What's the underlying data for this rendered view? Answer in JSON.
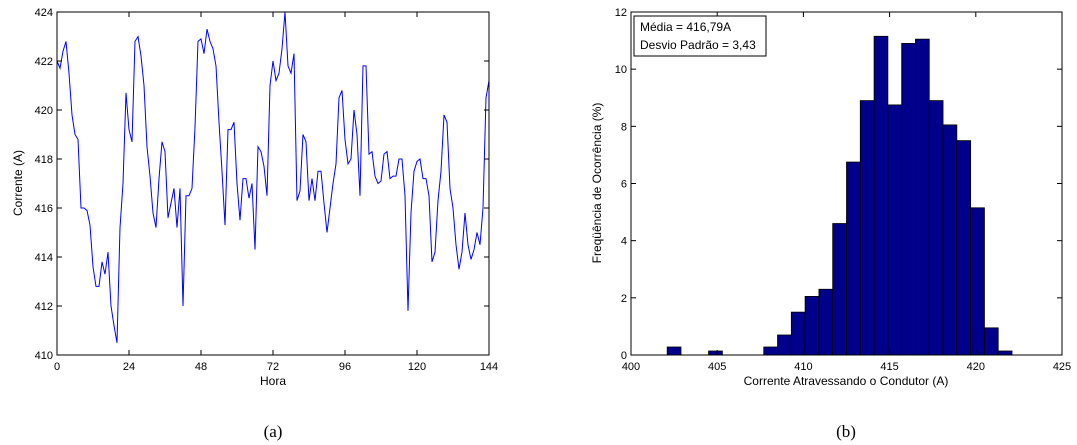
{
  "chart_data": [
    {
      "type": "line",
      "caption": "(a)",
      "xlabel": "Hora",
      "ylabel": "Corrente (A)",
      "xlim": [
        0,
        144
      ],
      "ylim": [
        410,
        424
      ],
      "xticks": [
        0,
        24,
        48,
        72,
        96,
        120,
        144
      ],
      "yticks": [
        410,
        412,
        414,
        416,
        418,
        420,
        422,
        424
      ],
      "grid": false,
      "color": "#0000ff",
      "series": [
        {
          "x": [
            0,
            1,
            2,
            3,
            4,
            5,
            6,
            7,
            8,
            9,
            10,
            11,
            12,
            13,
            14,
            15,
            16,
            17,
            18,
            19,
            20,
            21,
            22,
            23,
            24,
            25,
            26,
            27,
            28,
            29,
            30,
            31,
            32,
            33,
            34,
            35,
            36,
            37,
            38,
            39,
            40,
            41,
            42,
            43,
            44,
            45,
            46,
            47,
            48,
            49,
            50,
            51,
            52,
            53,
            54,
            55,
            56,
            57,
            58,
            59,
            60,
            61,
            62,
            63,
            64,
            65,
            66,
            67,
            68,
            69,
            70,
            71,
            72,
            73,
            74,
            75,
            76,
            77,
            78,
            79,
            80,
            81,
            82,
            83,
            84,
            85,
            86,
            87,
            88,
            89,
            90,
            91,
            92,
            93,
            94,
            95,
            96,
            97,
            98,
            99,
            100,
            101,
            102,
            103,
            104,
            105,
            106,
            107,
            108,
            109,
            110,
            111,
            112,
            113,
            114,
            115,
            116,
            117,
            118,
            119,
            120,
            121,
            122,
            123,
            124,
            125,
            126,
            127,
            128,
            129,
            130,
            131,
            132,
            133,
            134,
            135,
            136,
            137,
            138,
            139,
            140,
            141,
            142,
            143,
            144
          ],
          "values": [
            422.0,
            421.7,
            422.4,
            422.8,
            421.5,
            419.8,
            419.0,
            418.8,
            416.0,
            416.0,
            415.9,
            415.3,
            413.6,
            412.8,
            412.8,
            413.8,
            413.3,
            414.2,
            412.0,
            411.2,
            410.5,
            415.2,
            417.0,
            420.7,
            419.2,
            418.7,
            422.8,
            423.0,
            422.2,
            421.0,
            418.5,
            417.3,
            415.8,
            415.2,
            417.2,
            418.7,
            418.3,
            415.6,
            416.2,
            416.8,
            415.2,
            416.8,
            412.0,
            416.5,
            416.5,
            416.8,
            419.3,
            422.8,
            422.9,
            422.3,
            423.3,
            422.8,
            422.5,
            421.8,
            419.5,
            417.5,
            415.3,
            419.2,
            419.2,
            419.5,
            417.0,
            415.5,
            417.2,
            417.2,
            416.4,
            417.0,
            414.3,
            418.5,
            418.3,
            417.7,
            416.5,
            421.0,
            422.0,
            421.2,
            421.5,
            422.5,
            424.0,
            421.8,
            421.5,
            422.3,
            416.3,
            416.7,
            419.0,
            418.7,
            416.3,
            417.2,
            416.3,
            417.5,
            417.5,
            416.2,
            415.0,
            416.0,
            417.0,
            417.8,
            420.5,
            420.8,
            418.8,
            417.8,
            418.0,
            420.0,
            419.0,
            416.5,
            421.8,
            421.8,
            418.2,
            418.3,
            417.3,
            417.0,
            417.1,
            418.2,
            418.3,
            417.2,
            417.3,
            417.3,
            418.0,
            418.0,
            416.5,
            411.8,
            415.8,
            417.5,
            417.9,
            418.0,
            417.2,
            417.2,
            416.5,
            413.8,
            414.2,
            416.3,
            417.5,
            419.8,
            419.5,
            416.8,
            416.0,
            414.5,
            413.5,
            414.2,
            415.8,
            414.5,
            413.9,
            414.3,
            415.0,
            414.5,
            416.0,
            420.5,
            421.2
          ]
        }
      ]
    },
    {
      "type": "bar",
      "subtype": "histogram",
      "caption": "(b)",
      "xlabel": "Corrente Atravessando o Condutor (A)",
      "ylabel": "Freqüência de Ocorrência (%)",
      "xlim": [
        400,
        425
      ],
      "ylim": [
        0,
        12
      ],
      "xticks": [
        400,
        405,
        410,
        415,
        420,
        425
      ],
      "yticks": [
        0,
        2,
        4,
        6,
        8,
        10,
        12
      ],
      "grid": false,
      "bar_color": "#00008b",
      "bin_start": 401.3,
      "bin_width": 0.8,
      "values": [
        0,
        0.28,
        0,
        0,
        0.14,
        0,
        0,
        0,
        0.28,
        0.7,
        1.5,
        2.05,
        2.3,
        4.6,
        6.75,
        8.9,
        11.15,
        8.75,
        10.9,
        11.05,
        8.9,
        8.05,
        7.5,
        5.15,
        0.95,
        0.14
      ],
      "legend_location": "top-left",
      "annotations": [
        "Média = 416,79A",
        "Desvio Padrão = 3,43"
      ]
    }
  ]
}
